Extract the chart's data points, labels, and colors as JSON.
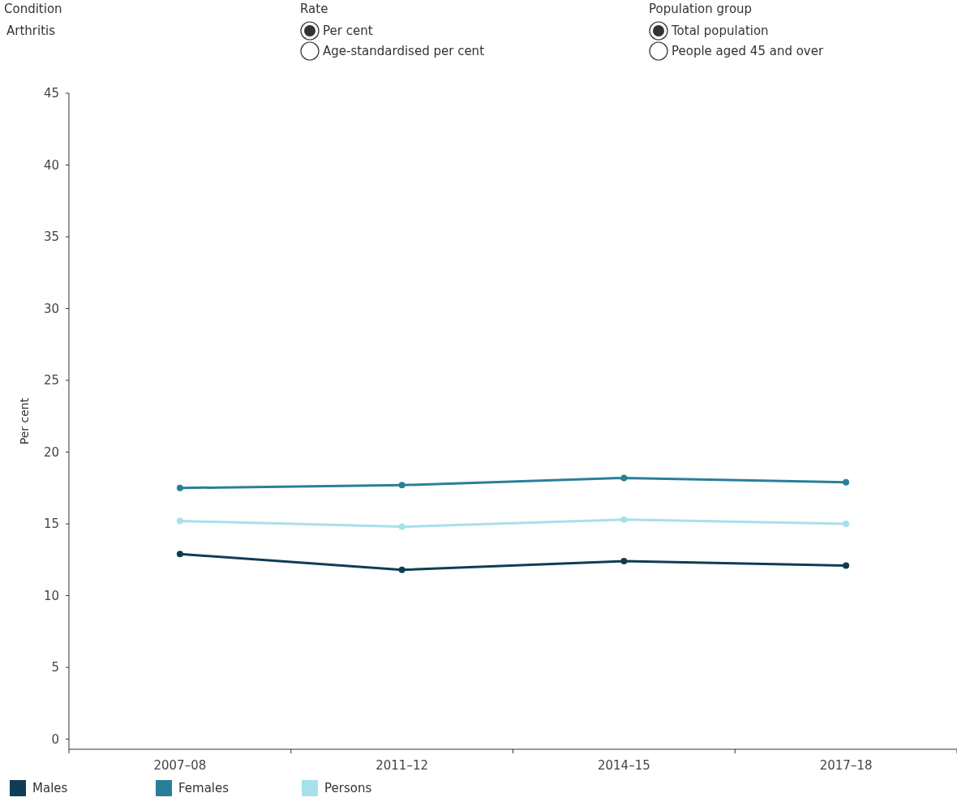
{
  "chart_data": {
    "type": "line",
    "ylabel": "Per cent",
    "annotations": [
      "Condition",
      "Arthritis",
      "Rate",
      "Per cent",
      "Age-standardised per cent",
      "Population group",
      "Total population",
      "People aged 45 and over"
    ],
    "categories": [
      "2007–08",
      "2011–12",
      "2014–15",
      "2017–18"
    ],
    "series": [
      {
        "name": "Males",
        "color": "#0f3d55",
        "values": [
          12.9,
          11.8,
          12.4,
          12.1
        ]
      },
      {
        "name": "Females",
        "color": "#2a7f98",
        "values": [
          17.5,
          17.7,
          18.2,
          17.9
        ]
      },
      {
        "name": "Persons",
        "color": "#a6e0ec",
        "values": [
          15.2,
          14.8,
          15.3,
          15.0
        ]
      }
    ],
    "ylim": [
      -0.7,
      45
    ],
    "yticks": [
      0,
      5,
      10,
      15,
      20,
      25,
      30,
      35,
      40,
      45
    ],
    "grid": false,
    "legend": "bottom",
    "marker": "circle",
    "line_style": "solid"
  }
}
